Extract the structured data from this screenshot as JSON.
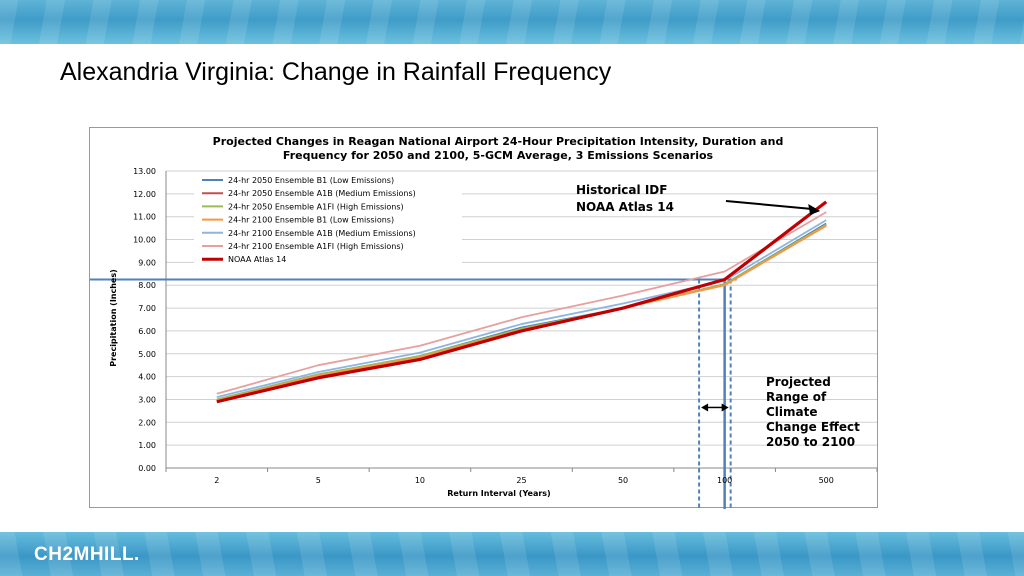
{
  "slide": {
    "title": "Alexandria Virginia: Change in Rainfall Frequency",
    "logo": "CH2MHILL."
  },
  "colors": {
    "noaa": "#c00000",
    "hline": "#4f81bd",
    "band_top": "#4aa6d0"
  },
  "chart_data": {
    "type": "line",
    "title": "Projected Changes in Reagan National Airport 24-Hour Precipitation Intensity, Duration and Frequency for 2050 and 2100, 5-GCM Average, 3 Emissions Scenarios",
    "title_lines": [
      "Projected Changes in Reagan National Airport 24-Hour Precipitation Intensity, Duration and",
      "Frequency for 2050 and 2100, 5-GCM Average, 3 Emissions Scenarios"
    ],
    "xlabel": "Return Interval (Years)",
    "ylabel": "Precipitation (Inches)",
    "categories": [
      "2",
      "5",
      "10",
      "25",
      "50",
      "100",
      "500"
    ],
    "ylim": [
      0,
      13
    ],
    "yticks": [
      "0.00",
      "1.00",
      "2.00",
      "3.00",
      "4.00",
      "5.00",
      "6.00",
      "7.00",
      "8.00",
      "9.00",
      "10.00",
      "11.00",
      "12.00",
      "13.00"
    ],
    "grid": true,
    "legend_position": "top-left",
    "series": [
      {
        "name": "24-hr 2050 Ensemble B1 (Low Emissions)",
        "color": "#4f81bd",
        "values": [
          3.0,
          4.1,
          4.9,
          6.15,
          7.0,
          8.05,
          10.7
        ]
      },
      {
        "name": "24-hr 2050 Ensemble A1B (Medium Emissions)",
        "color": "#c0504d",
        "values": [
          2.95,
          4.05,
          4.85,
          6.05,
          7.0,
          8.05,
          10.65
        ]
      },
      {
        "name": "24-hr 2050 Ensemble A1FI (High Emissions)",
        "color": "#9bbb59",
        "values": [
          3.0,
          4.1,
          4.9,
          6.1,
          7.0,
          8.05,
          10.65
        ]
      },
      {
        "name": "24-hr 2100 Ensemble B1 (Low Emissions)",
        "color": "#f79646",
        "values": [
          2.95,
          4.05,
          4.85,
          6.05,
          7.0,
          8.0,
          10.6
        ]
      },
      {
        "name": "24-hr 2100 Ensemble A1B (Medium Emissions)",
        "color": "#8eb4e3",
        "values": [
          3.1,
          4.2,
          5.05,
          6.3,
          7.2,
          8.2,
          10.85
        ]
      },
      {
        "name": "24-hr 2100 Ensemble A1FI (High Emissions)",
        "color": "#e6a0a0",
        "values": [
          3.25,
          4.5,
          5.35,
          6.6,
          7.55,
          8.6,
          11.2
        ]
      },
      {
        "name": "NOAA Atlas 14",
        "color": "#c00000",
        "values": [
          2.9,
          3.95,
          4.75,
          6.0,
          7.0,
          8.25,
          11.65
        ]
      }
    ],
    "reference_line_y": 8.25,
    "reference_verticals_x": [
      84,
      100,
      110
    ],
    "annotations": [
      {
        "lines": [
          "Historical IDF",
          "NOAA Atlas 14"
        ]
      },
      {
        "lines": [
          "Projected",
          "Range of",
          "Climate",
          "Change Effect",
          "2050 to 2100"
        ]
      }
    ]
  }
}
